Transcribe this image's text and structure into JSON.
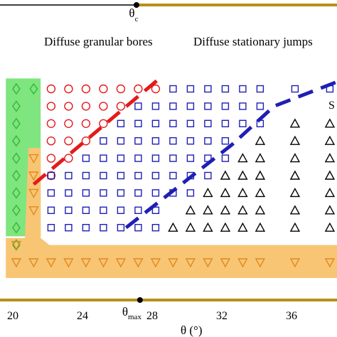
{
  "chart_data": {
    "type": "scatter",
    "title": "",
    "xlabel": "θ (°)",
    "xlim": [
      19,
      39.5
    ],
    "ylim": [
      0,
      13.4
    ],
    "x_ticks": [
      20,
      24,
      28,
      32,
      36
    ],
    "tick_labels": [
      "20",
      "24",
      "28",
      "32",
      "36"
    ],
    "top_marker": {
      "label": "θ",
      "subscript": "c",
      "x": 27.1
    },
    "bottom_marker": {
      "label": "θ",
      "subscript": "max",
      "x": 27.3
    },
    "annotations": {
      "left_region": "Diffuse granular bores",
      "right_region": "Diffuse stationary jumps",
      "edge_label": "S"
    },
    "colors": {
      "diamonds": "#33b833",
      "circles": "#e31a1c",
      "squares": "#1f1fb4",
      "triangles": "#000000",
      "inverted": "#e08a1e",
      "green_region": "#7fe57f",
      "orange_region": "#f8c574",
      "red_dashed": "#e31a1c",
      "blue_dashed": "#1f1fb4",
      "gold_bars": "#b8901a"
    },
    "series": [
      {
        "marker": "diamond",
        "points": [
          [
            20.2,
            1
          ],
          [
            20.2,
            2
          ],
          [
            20.2,
            3
          ],
          [
            20.2,
            4
          ],
          [
            20.2,
            5
          ],
          [
            20.2,
            6
          ],
          [
            20.2,
            7
          ],
          [
            20.2,
            8
          ],
          [
            20.2,
            9
          ],
          [
            20.2,
            10
          ],
          [
            21.2,
            10
          ]
        ]
      },
      {
        "marker": "circle",
        "points": [
          [
            22.2,
            10
          ],
          [
            23.2,
            10
          ],
          [
            24.2,
            10
          ],
          [
            25.2,
            10
          ],
          [
            26.2,
            10
          ],
          [
            27.2,
            10
          ],
          [
            28.2,
            10
          ],
          [
            22.2,
            9
          ],
          [
            23.2,
            9
          ],
          [
            24.2,
            9
          ],
          [
            25.2,
            9
          ],
          [
            26.2,
            9
          ],
          [
            22.2,
            8
          ],
          [
            23.2,
            8
          ],
          [
            24.2,
            8
          ],
          [
            25.2,
            8
          ],
          [
            22.2,
            7
          ],
          [
            23.2,
            7
          ],
          [
            24.2,
            7
          ],
          [
            22.2,
            6
          ],
          [
            23.2,
            6
          ],
          [
            22.2,
            5
          ]
        ]
      },
      {
        "marker": "square",
        "points": [
          [
            29.2,
            10
          ],
          [
            30.2,
            10
          ],
          [
            31.2,
            10
          ],
          [
            32.2,
            10
          ],
          [
            33.2,
            10
          ],
          [
            34.2,
            10
          ],
          [
            36.2,
            10
          ],
          [
            38.2,
            10
          ],
          [
            27.2,
            9
          ],
          [
            28.2,
            9
          ],
          [
            29.2,
            9
          ],
          [
            30.2,
            9
          ],
          [
            31.2,
            9
          ],
          [
            32.2,
            9
          ],
          [
            33.2,
            9
          ],
          [
            34.2,
            9
          ],
          [
            26.2,
            8
          ],
          [
            27.2,
            8
          ],
          [
            28.2,
            8
          ],
          [
            29.2,
            8
          ],
          [
            30.2,
            8
          ],
          [
            31.2,
            8
          ],
          [
            32.2,
            8
          ],
          [
            33.2,
            8
          ],
          [
            34.2,
            8
          ],
          [
            25.2,
            7
          ],
          [
            26.2,
            7
          ],
          [
            27.2,
            7
          ],
          [
            28.2,
            7
          ],
          [
            29.2,
            7
          ],
          [
            30.2,
            7
          ],
          [
            31.2,
            7
          ],
          [
            32.2,
            7
          ],
          [
            24.2,
            6
          ],
          [
            25.2,
            6
          ],
          [
            26.2,
            6
          ],
          [
            27.2,
            6
          ],
          [
            28.2,
            6
          ],
          [
            29.2,
            6
          ],
          [
            30.2,
            6
          ],
          [
            31.2,
            6
          ],
          [
            32.2,
            6
          ],
          [
            22.2,
            5
          ],
          [
            23.2,
            5
          ],
          [
            24.2,
            5
          ],
          [
            25.2,
            5
          ],
          [
            26.2,
            5
          ],
          [
            27.2,
            5
          ],
          [
            28.2,
            5
          ],
          [
            29.2,
            5
          ],
          [
            30.2,
            5
          ],
          [
            31.2,
            5
          ],
          [
            22.2,
            4
          ],
          [
            23.2,
            4
          ],
          [
            24.2,
            4
          ],
          [
            25.2,
            4
          ],
          [
            26.2,
            4
          ],
          [
            27.2,
            4
          ],
          [
            28.2,
            4
          ],
          [
            29.2,
            4
          ],
          [
            30.2,
            4
          ],
          [
            22.2,
            3
          ],
          [
            23.2,
            3
          ],
          [
            24.2,
            3
          ],
          [
            25.2,
            3
          ],
          [
            26.2,
            3
          ],
          [
            27.2,
            3
          ],
          [
            28.2,
            3
          ],
          [
            22.2,
            2
          ],
          [
            23.2,
            2
          ],
          [
            24.2,
            2
          ],
          [
            25.2,
            2
          ],
          [
            26.2,
            2
          ],
          [
            27.2,
            2
          ],
          [
            28.2,
            2
          ]
        ]
      },
      {
        "marker": "triangle",
        "points": [
          [
            36.2,
            8
          ],
          [
            38.2,
            8
          ],
          [
            34.2,
            7
          ],
          [
            36.2,
            7
          ],
          [
            38.2,
            7
          ],
          [
            33.2,
            6
          ],
          [
            34.2,
            6
          ],
          [
            36.2,
            6
          ],
          [
            38.2,
            6
          ],
          [
            32.2,
            5
          ],
          [
            33.2,
            5
          ],
          [
            34.2,
            5
          ],
          [
            36.2,
            5
          ],
          [
            38.2,
            5
          ],
          [
            31.2,
            4
          ],
          [
            32.2,
            4
          ],
          [
            33.2,
            4
          ],
          [
            34.2,
            4
          ],
          [
            36.2,
            4
          ],
          [
            38.2,
            4
          ],
          [
            30.2,
            3
          ],
          [
            31.2,
            3
          ],
          [
            32.2,
            3
          ],
          [
            33.2,
            3
          ],
          [
            34.2,
            3
          ],
          [
            36.2,
            3
          ],
          [
            38.2,
            3
          ],
          [
            29.2,
            2
          ],
          [
            30.2,
            2
          ],
          [
            31.2,
            2
          ],
          [
            32.2,
            2
          ],
          [
            33.2,
            2
          ],
          [
            34.2,
            2
          ],
          [
            36.2,
            2
          ],
          [
            38.2,
            2
          ]
        ]
      },
      {
        "marker": "inverted-triangle",
        "points": [
          [
            21.2,
            6
          ],
          [
            21.2,
            5
          ],
          [
            21.2,
            4
          ],
          [
            21.2,
            3
          ],
          [
            20.2,
            1
          ],
          [
            20.2,
            0
          ],
          [
            21.2,
            0
          ],
          [
            22.2,
            0
          ],
          [
            23.2,
            0
          ],
          [
            24.2,
            0
          ],
          [
            25.2,
            0
          ],
          [
            26.2,
            0
          ],
          [
            27.2,
            0
          ],
          [
            28.2,
            0
          ],
          [
            29.2,
            0
          ],
          [
            30.2,
            0
          ],
          [
            31.2,
            0
          ],
          [
            32.2,
            0
          ],
          [
            33.2,
            0
          ],
          [
            34.2,
            0
          ],
          [
            36.2,
            0
          ],
          [
            38.2,
            0
          ]
        ]
      }
    ],
    "boundaries": [
      {
        "color": "red_dashed",
        "points": [
          [
            21.2,
            4.5
          ],
          [
            28.3,
            10.5
          ]
        ]
      },
      {
        "color": "blue_dashed",
        "points": [
          [
            26.5,
            2
          ],
          [
            32.6,
            6.8
          ],
          [
            35,
            9
          ],
          [
            38.6,
            10.4
          ]
        ]
      }
    ],
    "regions": [
      {
        "color": "green_region",
        "outline": [
          [
            19.6,
            1.5
          ],
          [
            21.6,
            1.5
          ],
          [
            21.6,
            10.6
          ],
          [
            19.6,
            10.6
          ]
        ]
      },
      {
        "color": "orange_region",
        "outline": [
          [
            19.6,
            -0.9
          ],
          [
            39.5,
            -0.9
          ],
          [
            39.5,
            1.0
          ],
          [
            22.1,
            1.0
          ],
          [
            21.6,
            1.4
          ],
          [
            21.6,
            6.6
          ],
          [
            20.9,
            6.6
          ],
          [
            20.7,
            1.4
          ],
          [
            19.6,
            1.4
          ]
        ]
      }
    ],
    "legend": "none",
    "grid": false
  }
}
